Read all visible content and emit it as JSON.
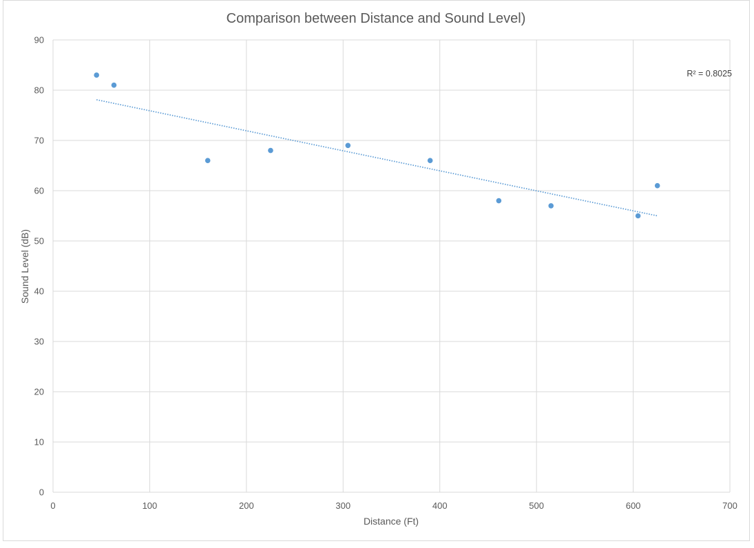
{
  "chart_data": {
    "type": "scatter",
    "title": "Comparison between Distance and Sound Level)",
    "xlabel": "Distance (Ft)",
    "ylabel": "Sound Level (dB)",
    "xlim": [
      0,
      700
    ],
    "ylim": [
      0,
      90
    ],
    "xticks": [
      0,
      100,
      200,
      300,
      400,
      500,
      600,
      700
    ],
    "yticks": [
      0,
      10,
      20,
      30,
      40,
      50,
      60,
      70,
      80,
      90
    ],
    "grid": true,
    "series": [
      {
        "name": "Sound Level",
        "color": "#5b9bd5",
        "points": [
          {
            "x": 45,
            "y": 83
          },
          {
            "x": 63,
            "y": 81
          },
          {
            "x": 160,
            "y": 66
          },
          {
            "x": 225,
            "y": 68
          },
          {
            "x": 305,
            "y": 69
          },
          {
            "x": 390,
            "y": 66
          },
          {
            "x": 461,
            "y": 58
          },
          {
            "x": 515,
            "y": 57
          },
          {
            "x": 605,
            "y": 55
          },
          {
            "x": 625,
            "y": 61
          }
        ]
      }
    ],
    "trendline": {
      "type": "linear",
      "x_start": 45,
      "y_start": 78.1,
      "x_end": 625,
      "y_end": 55.0,
      "color": "#5b9bd5",
      "r2_label": "R² = 0.8025"
    }
  }
}
